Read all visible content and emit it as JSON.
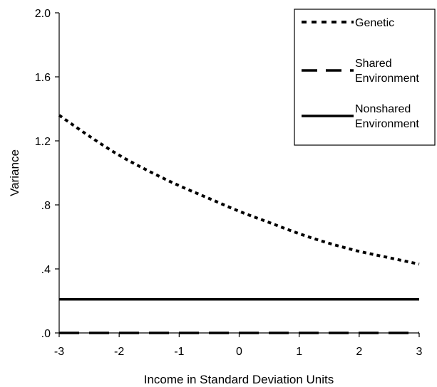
{
  "chart_data": {
    "type": "line",
    "title": "",
    "xlabel": "Income in Standard Deviation Units",
    "ylabel": "Variance",
    "xlim": [
      -3,
      3
    ],
    "ylim": [
      0,
      2.0
    ],
    "x_ticks": [
      -3,
      -2,
      -1,
      0,
      1,
      2,
      3
    ],
    "x_tick_labels": [
      "-3",
      "-2",
      "-1",
      "0",
      "1",
      "2",
      "3"
    ],
    "y_ticks": [
      0,
      0.4,
      0.8,
      1.2,
      1.6,
      2.0
    ],
    "y_tick_labels": [
      ".0",
      ".4",
      ".8",
      "1.2",
      "1.6",
      "2.0"
    ],
    "grid": false,
    "legend_position": "top-right",
    "x": [
      -3,
      -2.5,
      -2,
      -1.5,
      -1,
      -0.5,
      0,
      0.5,
      1,
      1.5,
      2,
      2.5,
      3
    ],
    "series": [
      {
        "name": "Genetic",
        "style": "dotted",
        "color": "#000000",
        "values": [
          1.36,
          1.23,
          1.11,
          1.01,
          0.92,
          0.84,
          0.76,
          0.69,
          0.62,
          0.56,
          0.51,
          0.47,
          0.43
        ]
      },
      {
        "name": "Shared Environment",
        "style": "dashed",
        "color": "#000000",
        "values": [
          0,
          0,
          0,
          0,
          0,
          0,
          0,
          0,
          0,
          0,
          0,
          0,
          0
        ]
      },
      {
        "name": "Nonshared Environment",
        "style": "solid",
        "color": "#000000",
        "values": [
          0.21,
          0.21,
          0.21,
          0.21,
          0.21,
          0.21,
          0.21,
          0.21,
          0.21,
          0.21,
          0.21,
          0.21,
          0.21
        ]
      }
    ],
    "legend": {
      "entries": [
        {
          "lines": [
            "Genetic"
          ]
        },
        {
          "lines": [
            "Shared",
            "Environment"
          ]
        },
        {
          "lines": [
            "Nonshared",
            "Environment"
          ]
        }
      ]
    }
  }
}
